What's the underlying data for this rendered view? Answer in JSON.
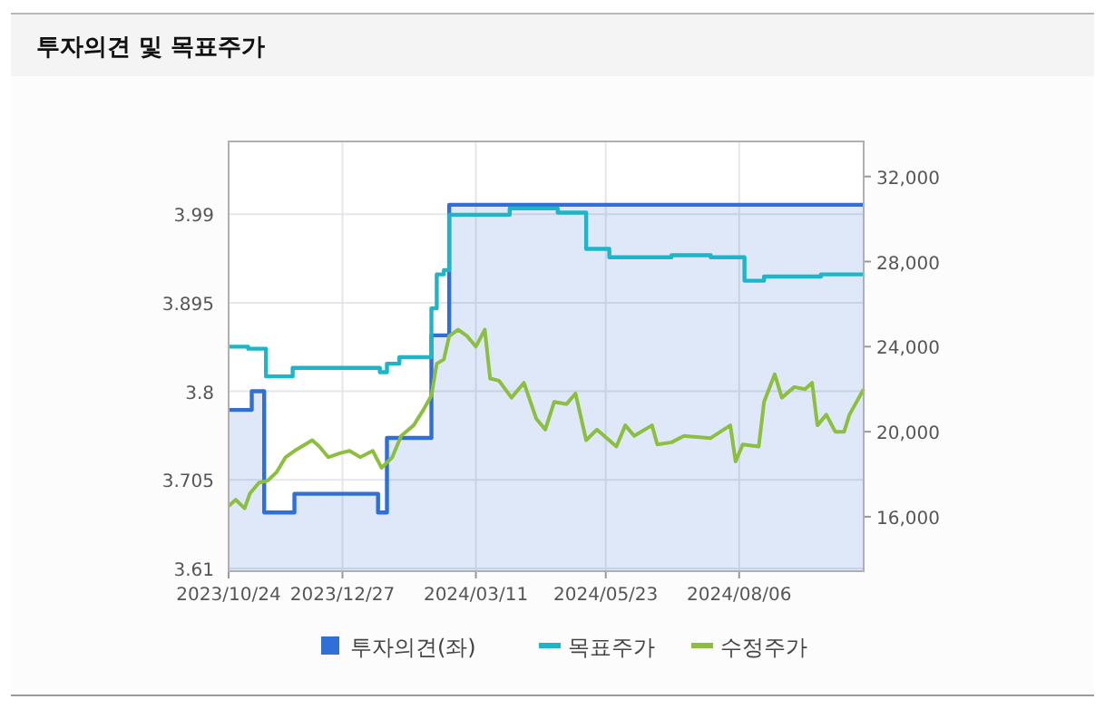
{
  "chart_data": {
    "type": "line",
    "title": "투자의견 및 목표주가",
    "xlim": [
      "2023-10-24",
      "2024-10-15"
    ],
    "xticks": [
      {
        "value": "2023-10-24",
        "label": "2023/10/24"
      },
      {
        "value": "2023-12-27",
        "label": "2023/12/27"
      },
      {
        "value": "2024-03-11",
        "label": "2024/03/11"
      },
      {
        "value": "2024-05-23",
        "label": "2024/05/23"
      },
      {
        "value": "2024-08-06",
        "label": "2024/08/06"
      }
    ],
    "ylim": [
      3.607,
      4.068
    ],
    "yticks": [
      3.61,
      3.705,
      3.8,
      3.895,
      3.99
    ],
    "y2lim": [
      13440,
      33650
    ],
    "y2ticks": [
      {
        "value": 16000,
        "label": "16,000"
      },
      {
        "value": 20000,
        "label": "20,000"
      },
      {
        "value": 24000,
        "label": "24,000"
      },
      {
        "value": 28000,
        "label": "28,000"
      },
      {
        "value": 32000,
        "label": "32,000"
      }
    ],
    "grid": true,
    "legend": "bottom",
    "series": [
      {
        "name": "투자의견(좌)",
        "type": "area",
        "color": "#2f6fd6",
        "x": [
          "2023-10-24",
          "2023-11-06",
          "2023-11-06",
          "2023-11-13",
          "2023-11-13",
          "2023-11-30",
          "2023-11-30",
          "2024-01-16",
          "2024-01-16",
          "2024-01-21",
          "2024-01-21",
          "2024-02-15",
          "2024-02-15",
          "2024-02-25",
          "2024-02-25",
          "2024-10-15"
        ],
        "values": [
          3.78,
          3.78,
          3.8,
          3.8,
          3.67,
          3.67,
          3.69,
          3.69,
          3.67,
          3.67,
          3.75,
          3.75,
          3.86,
          3.86,
          4.0,
          4.0
        ]
      },
      {
        "name": "목표주가",
        "type": "step",
        "axis": "y2",
        "color": "#1fb5c8",
        "x": [
          "2023-10-24",
          "2023-11-04",
          "2023-11-14",
          "2023-11-29",
          "2024-01-17",
          "2024-01-21",
          "2024-01-28",
          "2024-02-15",
          "2024-02-18",
          "2024-02-22",
          "2024-02-25",
          "2024-03-30",
          "2024-04-26",
          "2024-05-12",
          "2024-05-25",
          "2024-06-29",
          "2024-07-21",
          "2024-08-09",
          "2024-08-20",
          "2024-09-21",
          "2024-10-15"
        ],
        "values": [
          24000,
          23900,
          22600,
          23000,
          22800,
          23200,
          23500,
          25800,
          27400,
          27600,
          30200,
          30500,
          30300,
          28600,
          28200,
          28300,
          28200,
          27100,
          27300,
          27400,
          27400
        ]
      },
      {
        "name": "수정주가",
        "type": "line",
        "axis": "y2",
        "color": "#8cbf3f",
        "x": [
          "2023-10-24",
          "2023-10-28",
          "2023-11-02",
          "2023-11-05",
          "2023-11-10",
          "2023-11-15",
          "2023-11-20",
          "2023-11-25",
          "2023-11-30",
          "2023-12-06",
          "2023-12-10",
          "2023-12-14",
          "2023-12-19",
          "2023-12-26",
          "2023-12-31",
          "2024-01-06",
          "2024-01-13",
          "2024-01-18",
          "2024-01-24",
          "2024-01-29",
          "2024-02-05",
          "2024-02-11",
          "2024-02-15",
          "2024-02-18",
          "2024-02-22",
          "2024-02-25",
          "2024-03-01",
          "2024-03-06",
          "2024-03-11",
          "2024-03-16",
          "2024-03-19",
          "2024-03-24",
          "2024-03-31",
          "2024-04-07",
          "2024-04-14",
          "2024-04-19",
          "2024-04-24",
          "2024-05-01",
          "2024-05-06",
          "2024-05-12",
          "2024-05-18",
          "2024-05-29",
          "2024-06-03",
          "2024-06-08",
          "2024-06-18",
          "2024-06-21",
          "2024-06-29",
          "2024-07-06",
          "2024-07-21",
          "2024-08-01",
          "2024-08-04",
          "2024-08-08",
          "2024-08-17",
          "2024-08-20",
          "2024-08-26",
          "2024-08-30",
          "2024-09-06",
          "2024-09-12",
          "2024-09-16",
          "2024-09-19",
          "2024-09-24",
          "2024-09-29",
          "2024-10-04",
          "2024-10-07",
          "2024-10-15"
        ],
        "values": [
          16500,
          16800,
          16400,
          17100,
          17600,
          17700,
          18100,
          18800,
          19100,
          19400,
          19600,
          19300,
          18800,
          19000,
          19100,
          18800,
          19100,
          18300,
          18800,
          19800,
          20300,
          21100,
          21700,
          23200,
          23400,
          24500,
          24800,
          24500,
          24000,
          24800,
          22500,
          22400,
          21600,
          22300,
          20600,
          20100,
          21400,
          21300,
          21800,
          19600,
          20100,
          19300,
          20300,
          19800,
          20300,
          19400,
          19500,
          19800,
          19700,
          20300,
          18600,
          19400,
          19300,
          21400,
          22700,
          21600,
          22100,
          22000,
          22300,
          20300,
          20800,
          20000,
          20000,
          20800,
          22000
        ]
      }
    ]
  }
}
